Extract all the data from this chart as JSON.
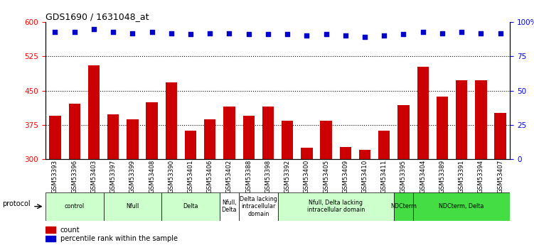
{
  "title": "GDS1690 / 1631048_at",
  "samples": [
    "GSM53393",
    "GSM53396",
    "GSM53403",
    "GSM53397",
    "GSM53399",
    "GSM53408",
    "GSM53390",
    "GSM53401",
    "GSM53406",
    "GSM53402",
    "GSM53388",
    "GSM53398",
    "GSM53392",
    "GSM53400",
    "GSM53405",
    "GSM53409",
    "GSM53410",
    "GSM53411",
    "GSM53395",
    "GSM53404",
    "GSM53389",
    "GSM53391",
    "GSM53394",
    "GSM53407"
  ],
  "counts": [
    395,
    422,
    505,
    398,
    388,
    425,
    468,
    362,
    388,
    415,
    395,
    415,
    385,
    325,
    385,
    327,
    320,
    362,
    418,
    503,
    437,
    472,
    472,
    402
  ],
  "percentiles": [
    93,
    93,
    95,
    93,
    92,
    93,
    92,
    91,
    92,
    92,
    91,
    91,
    91,
    90,
    91,
    90,
    89,
    90,
    91,
    93,
    92,
    93,
    92,
    92
  ],
  "bar_color": "#cc0000",
  "dot_color": "#0000cc",
  "ylim_left": [
    300,
    600
  ],
  "ylim_right": [
    0,
    100
  ],
  "yticks_left": [
    300,
    375,
    450,
    525,
    600
  ],
  "yticks_right": [
    0,
    25,
    50,
    75,
    100
  ],
  "hlines": [
    375,
    450,
    525
  ],
  "groups": [
    {
      "label": "control",
      "start": 0,
      "end": 2,
      "color": "#ccffcc"
    },
    {
      "label": "Nfull",
      "start": 3,
      "end": 5,
      "color": "#ccffcc"
    },
    {
      "label": "Delta",
      "start": 6,
      "end": 8,
      "color": "#ccffcc"
    },
    {
      "label": "Nfull,\nDelta",
      "start": 9,
      "end": 9,
      "color": "#ffffff"
    },
    {
      "label": "Delta lacking\nintracellular\ndomain",
      "start": 10,
      "end": 11,
      "color": "#ffffff"
    },
    {
      "label": "Nfull, Delta lacking\nintracellular domain",
      "start": 12,
      "end": 17,
      "color": "#ccffcc"
    },
    {
      "label": "NDCterm",
      "start": 18,
      "end": 18,
      "color": "#44dd44"
    },
    {
      "label": "NDCterm, Delta",
      "start": 19,
      "end": 23,
      "color": "#44dd44"
    }
  ],
  "protocol_label": "protocol",
  "legend_count_label": "count",
  "legend_pct_label": "percentile rank within the sample"
}
